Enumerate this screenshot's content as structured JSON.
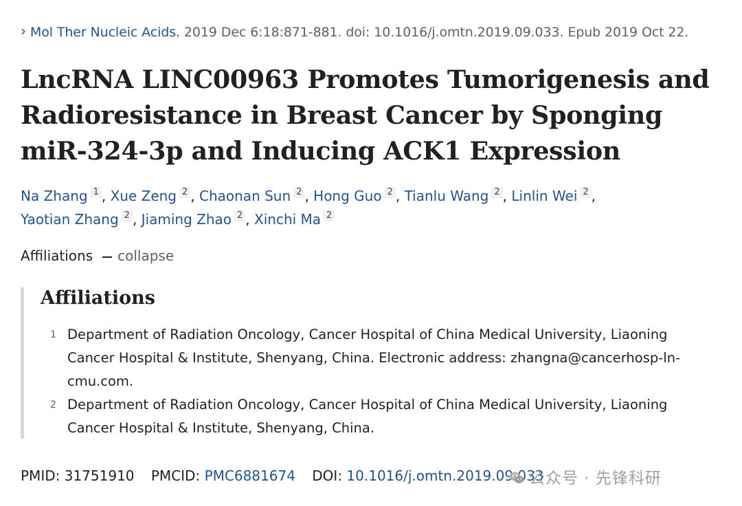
{
  "citation": {
    "chevron_icon": "chevron-right-icon",
    "journal": "Mol Ther Nucleic Acids.",
    "details": " 2019 Dec 6:18:871-881. doi: 10.1016/j.omtn.2019.09.033. Epub 2019 Oct 22."
  },
  "title": "LncRNA LINC00963 Promotes Tumorigenesis and Radioresistance in Breast Cancer by Sponging miR-324-3p and Inducing ACK1 Expression",
  "authors": [
    {
      "name": "Na Zhang",
      "aff": "1",
      "sep": ", "
    },
    {
      "name": "Xue Zeng",
      "aff": "2",
      "sep": ", "
    },
    {
      "name": "Chaonan Sun",
      "aff": "2",
      "sep": ", "
    },
    {
      "name": "Hong Guo",
      "aff": "2",
      "sep": ", "
    },
    {
      "name": "Tianlu Wang",
      "aff": "2",
      "sep": ", "
    },
    {
      "name": "Linlin Wei",
      "aff": "2",
      "sep": ","
    },
    {
      "name": "Yaotian Zhang",
      "aff": "2",
      "sep": ", "
    },
    {
      "name": "Jiaming Zhao",
      "aff": "2",
      "sep": ", "
    },
    {
      "name": "Xinchi Ma",
      "aff": "2",
      "sep": ""
    }
  ],
  "affiliations_toggle": {
    "label": "Affiliations",
    "action": "collapse"
  },
  "affiliations": {
    "heading": "Affiliations",
    "items": [
      {
        "num": "1",
        "text": "Department of Radiation Oncology, Cancer Hospital of China Medical University, Liaoning Cancer Hospital & Institute, Shenyang, China. Electronic address: zhangna@cancerhosp-ln-cmu.com."
      },
      {
        "num": "2",
        "text": "Department of Radiation Oncology, Cancer Hospital of China Medical University, Liaoning Cancer Hospital & Institute, Shenyang, China."
      }
    ]
  },
  "identifiers": {
    "pmid_label": "PMID:",
    "pmid": "31751910",
    "pmcid_label": "PMCID:",
    "pmcid": "PMC6881674",
    "doi_label": "DOI:",
    "doi": "10.1016/j.omtn.2019.09.033"
  },
  "watermark": {
    "icon": "wechat-icon",
    "text": "公众号 · 先锋科研"
  },
  "colors": {
    "link": "#205493",
    "muted": "#5b616b",
    "text": "#212121",
    "border": "#d6d7d9"
  }
}
